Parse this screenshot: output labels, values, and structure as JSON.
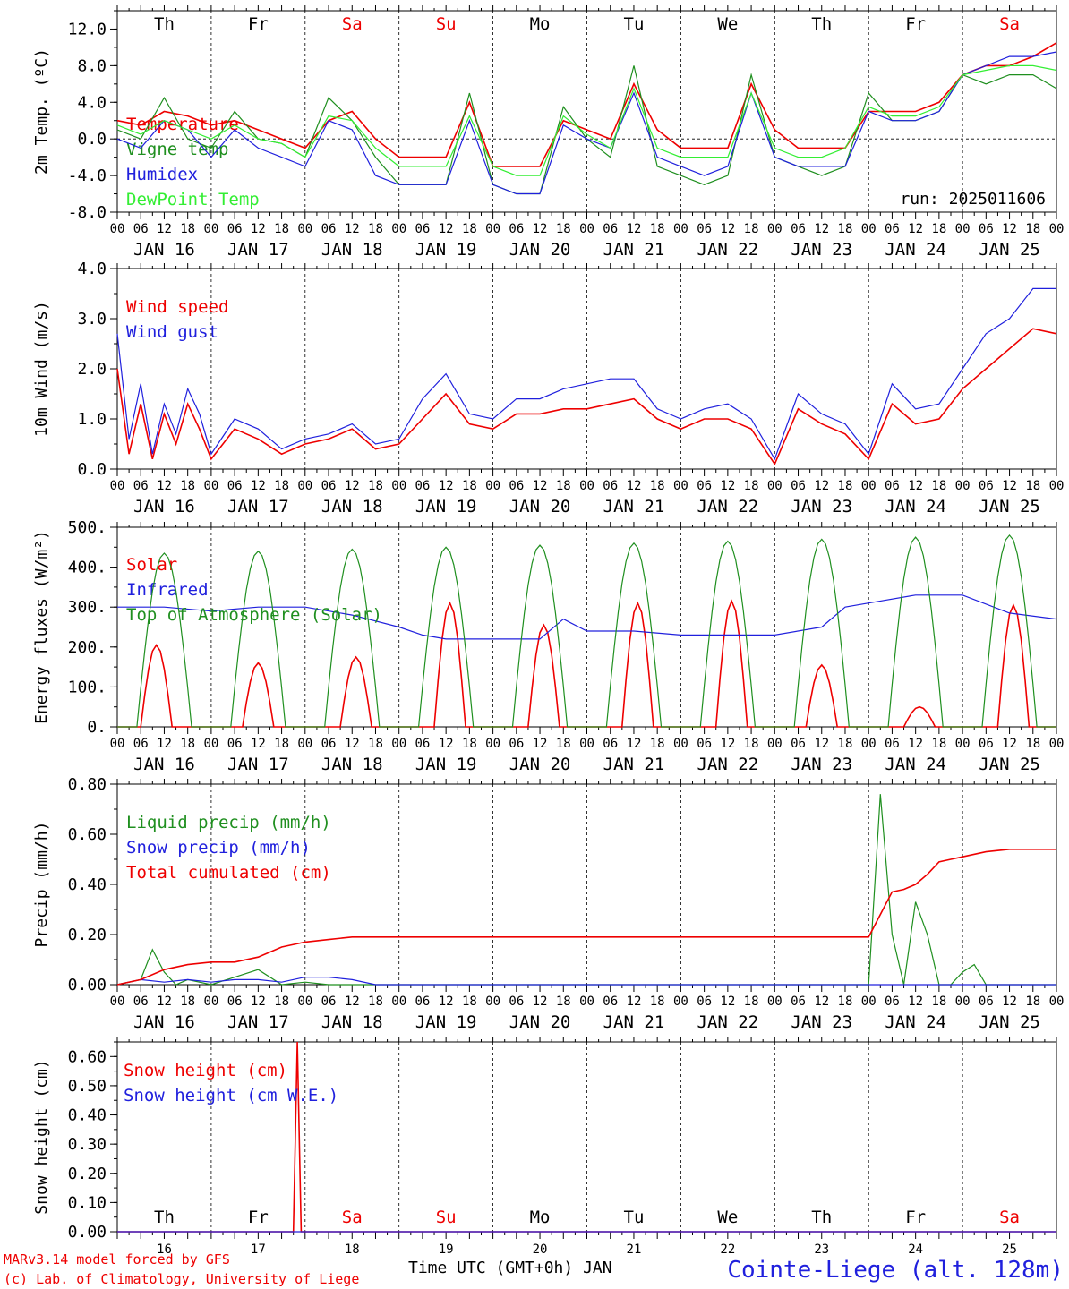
{
  "meta": {
    "model_note": "MARv3.14 model forced by GFS",
    "copyright": "(c) Lab. of Climatology, University of Liege",
    "x_axis_title": "Time UTC (GMT+0h) JAN",
    "station": "Cointe-Liege (alt. 128m)",
    "run": "run: 2025011606",
    "colors": {
      "red": "#ee0000",
      "green": "#1f8f1f",
      "blue": "#2020dd",
      "lightgreen": "#33ee33",
      "axis": "#000000"
    }
  },
  "days": {
    "weekdays": [
      "Th",
      "Fr",
      "Sa",
      "Su",
      "Mo",
      "Tu",
      "We",
      "Th",
      "Fr",
      "Sa"
    ],
    "weekend_flags": [
      false,
      false,
      true,
      true,
      false,
      false,
      false,
      false,
      false,
      true
    ],
    "date_labels": [
      "JAN 16",
      "JAN 17",
      "JAN 18",
      "JAN 19",
      "JAN 20",
      "JAN 21",
      "JAN 22",
      "JAN 23",
      "JAN 24",
      "JAN 25"
    ],
    "day_numbers": [
      "16",
      "17",
      "18",
      "19",
      "20",
      "21",
      "22",
      "23",
      "24",
      "25"
    ],
    "hour_ticks": [
      "00",
      "06",
      "12",
      "18"
    ],
    "final_tick": "00"
  },
  "chart_data": [
    {
      "type": "line",
      "ylabel": "2m Temp. (ºC)",
      "ylim": [
        -8,
        14
      ],
      "yticks": [
        "-8.0",
        "-4.0",
        "0.0",
        "4.0",
        "8.0",
        "12.0"
      ],
      "x_unit": "hours since JAN 16 00 UTC",
      "series": [
        {
          "name": "Temperature",
          "color": "red",
          "x": [
            0,
            6,
            12,
            18,
            24,
            30,
            36,
            42,
            48,
            54,
            60,
            66,
            72,
            78,
            84,
            90,
            96,
            102,
            108,
            114,
            120,
            126,
            132,
            138,
            144,
            150,
            156,
            162,
            168,
            174,
            180,
            186,
            192,
            198,
            204,
            210,
            216,
            222,
            228,
            234,
            240
          ],
          "values": [
            2,
            1.5,
            3,
            2.5,
            1.5,
            2,
            1,
            0,
            -1,
            2,
            3,
            0,
            -2,
            -2,
            -2,
            4,
            -3,
            -3,
            -3,
            2,
            1,
            0,
            6,
            1,
            -1,
            -1,
            -1,
            6,
            1,
            -1,
            -1,
            -1,
            3,
            3,
            3,
            4,
            7,
            8,
            8,
            9,
            10.5
          ]
        },
        {
          "name": "Vigne temp",
          "color": "green",
          "x": [
            0,
            6,
            12,
            18,
            24,
            30,
            36,
            42,
            48,
            54,
            60,
            66,
            72,
            78,
            84,
            90,
            96,
            102,
            108,
            114,
            120,
            126,
            132,
            138,
            144,
            150,
            156,
            162,
            168,
            174,
            180,
            186,
            192,
            198,
            204,
            210,
            216,
            222,
            228,
            234,
            240
          ],
          "values": [
            1,
            0,
            4.5,
            0,
            -1,
            3,
            0,
            -0.5,
            -2,
            4.5,
            2,
            -2,
            -5,
            -5,
            -5,
            5,
            -5,
            -6,
            -6,
            3.5,
            0,
            -2,
            8,
            -3,
            -4,
            -5,
            -4,
            7,
            -2,
            -3,
            -4,
            -3,
            5,
            2,
            2,
            3,
            7,
            6,
            7,
            7,
            5.5
          ]
        },
        {
          "name": "Humidex",
          "color": "blue",
          "x": [
            0,
            6,
            12,
            18,
            24,
            30,
            36,
            42,
            48,
            54,
            60,
            66,
            72,
            78,
            84,
            90,
            96,
            102,
            108,
            114,
            120,
            126,
            132,
            138,
            144,
            150,
            156,
            162,
            168,
            174,
            180,
            186,
            192,
            198,
            204,
            210,
            216,
            222,
            228,
            234,
            240
          ],
          "values": [
            0,
            -1,
            2,
            1,
            -2,
            1,
            -1,
            -2,
            -3,
            2,
            1,
            -4,
            -5,
            -5,
            -5,
            2,
            -5,
            -6,
            -6,
            1.5,
            0,
            -1,
            5,
            -2,
            -3,
            -4,
            -3,
            5,
            -2,
            -3,
            -3,
            -3,
            3,
            2,
            2,
            3,
            7,
            8,
            9,
            9,
            9.5
          ]
        },
        {
          "name": "DewPoint Temp",
          "color": "lightgreen",
          "x": [
            0,
            6,
            12,
            18,
            24,
            30,
            36,
            42,
            48,
            54,
            60,
            66,
            72,
            78,
            84,
            90,
            96,
            102,
            108,
            114,
            120,
            126,
            132,
            138,
            144,
            150,
            156,
            162,
            168,
            174,
            180,
            186,
            192,
            198,
            204,
            210,
            216,
            222,
            228,
            234,
            240
          ],
          "values": [
            1.5,
            0.5,
            2,
            1,
            0,
            1.5,
            0,
            -0.5,
            -2,
            2.5,
            2,
            -1,
            -3,
            -3,
            -3,
            2.5,
            -3,
            -4,
            -4,
            2.5,
            0.5,
            -1,
            5.5,
            -1,
            -2,
            -2,
            -2,
            5,
            -1,
            -2,
            -2,
            -1,
            3.5,
            2.5,
            2.5,
            3.5,
            7,
            7.5,
            8,
            8,
            7.5
          ]
        }
      ]
    },
    {
      "type": "line",
      "ylabel": "10m Wind (m/s)",
      "ylim": [
        0,
        4
      ],
      "yticks": [
        "0.0",
        "1.0",
        "2.0",
        "3.0",
        "4.0"
      ],
      "x_unit": "hours since JAN 16 00 UTC",
      "series": [
        {
          "name": "Wind speed",
          "color": "red",
          "x": [
            0,
            3,
            6,
            9,
            12,
            15,
            18,
            21,
            24,
            30,
            36,
            42,
            48,
            54,
            60,
            66,
            72,
            78,
            84,
            90,
            96,
            102,
            108,
            114,
            120,
            126,
            132,
            138,
            144,
            150,
            156,
            162,
            168,
            174,
            180,
            186,
            192,
            198,
            204,
            210,
            216,
            222,
            228,
            234,
            240
          ],
          "values": [
            2,
            0.3,
            1.3,
            0.2,
            1.1,
            0.5,
            1.3,
            0.8,
            0.2,
            0.8,
            0.6,
            0.3,
            0.5,
            0.6,
            0.8,
            0.4,
            0.5,
            1.0,
            1.5,
            0.9,
            0.8,
            1.1,
            1.1,
            1.2,
            1.2,
            1.3,
            1.4,
            1.0,
            0.8,
            1.0,
            1.0,
            0.8,
            0.1,
            1.2,
            0.9,
            0.7,
            0.2,
            1.3,
            0.9,
            1.0,
            1.6,
            2.0,
            2.4,
            2.8,
            2.7
          ]
        },
        {
          "name": "Wind gust",
          "color": "blue",
          "x": [
            0,
            3,
            6,
            9,
            12,
            15,
            18,
            21,
            24,
            30,
            36,
            42,
            48,
            54,
            60,
            66,
            72,
            78,
            84,
            90,
            96,
            102,
            108,
            114,
            120,
            126,
            132,
            138,
            144,
            150,
            156,
            162,
            168,
            174,
            180,
            186,
            192,
            198,
            204,
            210,
            216,
            222,
            228,
            234,
            240
          ],
          "values": [
            2.7,
            0.6,
            1.7,
            0.3,
            1.3,
            0.7,
            1.6,
            1.1,
            0.3,
            1.0,
            0.8,
            0.4,
            0.6,
            0.7,
            0.9,
            0.5,
            0.6,
            1.4,
            1.9,
            1.1,
            1.0,
            1.4,
            1.4,
            1.6,
            1.7,
            1.8,
            1.8,
            1.2,
            1.0,
            1.2,
            1.3,
            1.0,
            0.2,
            1.5,
            1.1,
            0.9,
            0.3,
            1.7,
            1.2,
            1.3,
            2.0,
            2.7,
            3.0,
            3.6,
            3.6
          ]
        }
      ]
    },
    {
      "type": "line",
      "ylabel": "Energy fluxes (W/m²)",
      "ylim": [
        0,
        500
      ],
      "yticks": [
        "0.",
        "100.",
        "200.",
        "300.",
        "400.",
        "500."
      ],
      "x_unit": "hours since JAN 16 00 UTC",
      "series": [
        {
          "name": "Solar",
          "color": "red",
          "peaks_hour": [
            10,
            12,
            13,
            13,
            13,
            13,
            13,
            12,
            13,
            13
          ],
          "peak_values": [
            205,
            160,
            175,
            310,
            255,
            310,
            315,
            155,
            50,
            305
          ]
        },
        {
          "name": "Infrared",
          "color": "blue",
          "x": [
            0,
            12,
            24,
            36,
            48,
            60,
            72,
            78,
            84,
            96,
            102,
            108,
            114,
            120,
            132,
            144,
            156,
            168,
            180,
            186,
            192,
            204,
            216,
            228,
            240
          ],
          "values": [
            300,
            300,
            290,
            300,
            300,
            280,
            250,
            230,
            220,
            220,
            220,
            220,
            270,
            240,
            240,
            230,
            230,
            230,
            250,
            300,
            310,
            330,
            330,
            285,
            270
          ]
        },
        {
          "name": "Top of Atmosphere (Solar)",
          "color": "green",
          "peak_values": [
            435,
            440,
            445,
            450,
            455,
            460,
            465,
            470,
            475,
            480
          ]
        }
      ]
    },
    {
      "type": "line",
      "ylabel": "Precip (mm/h)",
      "ylim": [
        0,
        0.8
      ],
      "yticks": [
        "0.00",
        "0.20",
        "0.40",
        "0.60",
        "0.80"
      ],
      "x_unit": "hours since JAN 16 00 UTC",
      "series": [
        {
          "name": "Liquid precip (mm/h)",
          "color": "green",
          "x": [
            0,
            6,
            9,
            12,
            15,
            18,
            24,
            36,
            42,
            48,
            54,
            60,
            66,
            72,
            192,
            195,
            198,
            201,
            204,
            207,
            210,
            213,
            216,
            219,
            222,
            228,
            240
          ],
          "values": [
            0,
            0.02,
            0.14,
            0.05,
            0,
            0.02,
            0,
            0.06,
            0,
            0.01,
            0,
            0,
            0,
            0,
            0,
            0.76,
            0.2,
            0,
            0.33,
            0.2,
            0,
            0,
            0.05,
            0.08,
            0,
            0,
            0
          ]
        },
        {
          "name": "Snow precip (mm/h)",
          "color": "blue",
          "x": [
            0,
            6,
            12,
            18,
            24,
            30,
            36,
            42,
            48,
            54,
            60,
            66,
            72,
            78,
            240
          ],
          "values": [
            0,
            0.02,
            0.01,
            0.02,
            0.01,
            0.02,
            0.02,
            0.01,
            0.03,
            0.03,
            0.02,
            0,
            0,
            0,
            0
          ]
        },
        {
          "name": "Total cumulated (cm)",
          "color": "red",
          "x": [
            0,
            6,
            12,
            18,
            24,
            30,
            36,
            42,
            48,
            54,
            60,
            66,
            72,
            192,
            195,
            198,
            201,
            204,
            207,
            210,
            213,
            216,
            222,
            228,
            240
          ],
          "values": [
            0,
            0.02,
            0.06,
            0.08,
            0.09,
            0.09,
            0.11,
            0.15,
            0.17,
            0.18,
            0.19,
            0.19,
            0.19,
            0.19,
            0.28,
            0.37,
            0.38,
            0.4,
            0.44,
            0.49,
            0.5,
            0.51,
            0.53,
            0.54,
            0.54
          ]
        }
      ]
    },
    {
      "type": "line",
      "ylabel": "Snow height (cm)",
      "ylim": [
        0,
        0.65
      ],
      "yticks": [
        "0.00",
        "0.10",
        "0.20",
        "0.30",
        "0.40",
        "0.50",
        "0.60"
      ],
      "x_unit": "hours since JAN 16 00 UTC",
      "series": [
        {
          "name": "Snow height (cm)",
          "color": "red",
          "x": [
            0,
            45,
            46,
            47,
            48,
            240
          ],
          "values": [
            0,
            0,
            0.65,
            0,
            0,
            0
          ]
        },
        {
          "name": "Snow height (cm W.E.)",
          "color": "blue",
          "x": [
            0,
            240
          ],
          "values": [
            0,
            0
          ]
        }
      ]
    }
  ]
}
